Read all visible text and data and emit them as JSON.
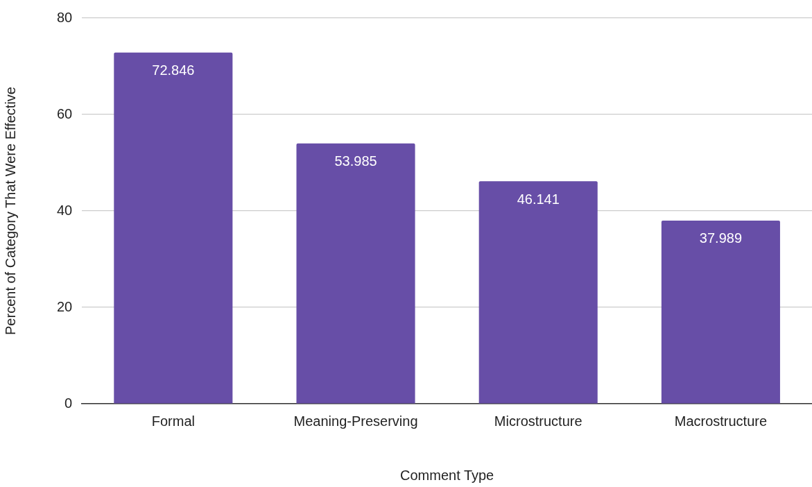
{
  "chart_data": {
    "type": "bar",
    "xlabel": "Comment Type",
    "ylabel": "Percent of Category That Were Effective",
    "categories": [
      "Formal",
      "Meaning-Preserving",
      "Microstructure",
      "Macrostructure"
    ],
    "values": [
      72.846,
      53.985,
      46.141,
      37.989
    ],
    "color": "#674ea7",
    "ylim": [
      0,
      80
    ],
    "yticks": [
      0,
      20,
      40,
      60,
      80
    ],
    "grid": "y",
    "data_labels": true,
    "legend": false
  }
}
